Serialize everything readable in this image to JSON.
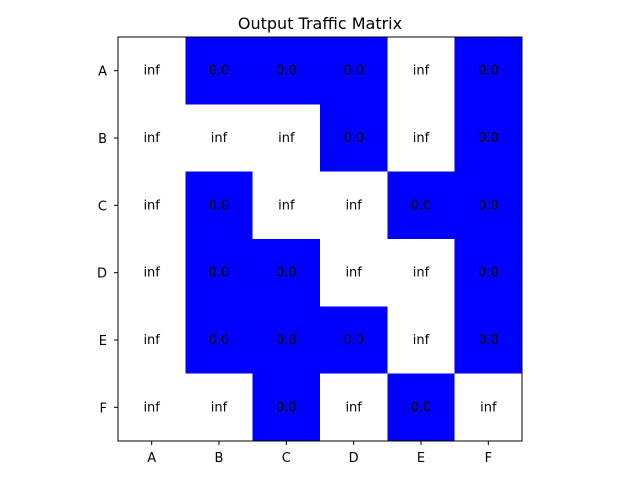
{
  "chart_data": {
    "type": "heatmap",
    "title": "Output Traffic Matrix",
    "xlabel": "",
    "ylabel": "",
    "x_categories": [
      "A",
      "B",
      "C",
      "D",
      "E",
      "F"
    ],
    "y_categories": [
      "A",
      "B",
      "C",
      "D",
      "E",
      "F"
    ],
    "cells": [
      [
        "inf",
        "0.0",
        "0.0",
        "0.0",
        "inf",
        "0.0"
      ],
      [
        "inf",
        "inf",
        "inf",
        "0.0",
        "inf",
        "0.0"
      ],
      [
        "inf",
        "0.0",
        "inf",
        "inf",
        "0.0",
        "0.0"
      ],
      [
        "inf",
        "0.0",
        "0.0",
        "inf",
        "inf",
        "0.0"
      ],
      [
        "inf",
        "0.0",
        "0.0",
        "0.0",
        "inf",
        "0.0"
      ],
      [
        "inf",
        "inf",
        "0.0",
        "inf",
        "0.0",
        "inf"
      ]
    ],
    "colors": {
      "inf": "#ffffff",
      "0.0": "#0000ff"
    },
    "grid": false,
    "legend": "none"
  }
}
